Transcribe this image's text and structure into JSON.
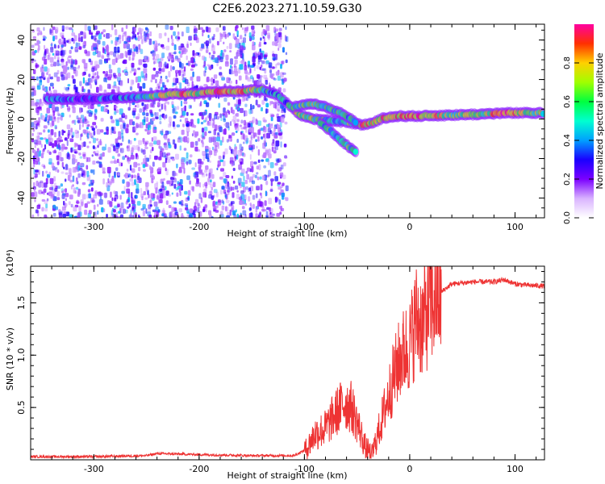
{
  "title": "C2E6.2023.271.10.59.G30",
  "chart_data": [
    {
      "type": "heatmap",
      "xlabel": "Height of straight line (km)",
      "ylabel": "Frequency (Hz)",
      "xlim": [
        -360,
        128
      ],
      "ylim": [
        -50,
        48
      ],
      "xticks": [
        -300,
        -200,
        -100,
        0,
        100
      ],
      "yticks": [
        -40,
        -20,
        0,
        20,
        40
      ],
      "colorbar": {
        "label": "Normalized spectral amplitude",
        "range": [
          0,
          1
        ],
        "ticks": [
          "0.0",
          "0.2",
          "0.4",
          "0.6",
          "0.8"
        ],
        "colors": [
          "#ffffff",
          "#d9b3ff",
          "#7b00ff",
          "#1a00ff",
          "#00a0ff",
          "#00ffd0",
          "#00ff40",
          "#a0ff00",
          "#ffd000",
          "#ff3000",
          "#ff00a0"
        ]
      },
      "noise_region_x": [
        -360,
        -118
      ],
      "ridge": [
        {
          "x": -345,
          "f": 10,
          "a": 0.35
        },
        {
          "x": -320,
          "f": 10,
          "a": 0.35
        },
        {
          "x": -290,
          "f": 10.5,
          "a": 0.35
        },
        {
          "x": -260,
          "f": 11,
          "a": 0.4
        },
        {
          "x": -245,
          "f": 11.5,
          "a": 0.6
        },
        {
          "x": -225,
          "f": 12.5,
          "a": 0.85
        },
        {
          "x": -200,
          "f": 13,
          "a": 0.7
        },
        {
          "x": -185,
          "f": 14,
          "a": 0.85
        },
        {
          "x": -160,
          "f": 14,
          "a": 0.8
        },
        {
          "x": -140,
          "f": 15,
          "a": 0.5
        },
        {
          "x": -125,
          "f": 12,
          "a": 0.4
        },
        {
          "x": -112,
          "f": 6,
          "a": 0.5
        },
        {
          "x": -105,
          "f": 2,
          "a": 0.75
        },
        {
          "x": -90,
          "f": 0,
          "a": 0.6
        },
        {
          "x": -75,
          "f": -1,
          "a": 0.5
        },
        {
          "x": -60,
          "f": -1.5,
          "a": 0.5
        },
        {
          "x": -45,
          "f": -3,
          "a": 0.85
        },
        {
          "x": -35,
          "f": -2,
          "a": 0.7
        },
        {
          "x": -25,
          "f": 0.5,
          "a": 0.85
        },
        {
          "x": -10,
          "f": 1.5,
          "a": 0.8
        },
        {
          "x": 10,
          "f": 1.5,
          "a": 0.85
        },
        {
          "x": 40,
          "f": 2,
          "a": 0.6
        },
        {
          "x": 70,
          "f": 2.5,
          "a": 0.65
        },
        {
          "x": 90,
          "f": 3,
          "a": 0.9
        },
        {
          "x": 110,
          "f": 3,
          "a": 0.7
        },
        {
          "x": 128,
          "f": 3,
          "a": 0.6
        }
      ],
      "upper_branch": [
        {
          "x": -110,
          "f": 6,
          "a": 0.5
        },
        {
          "x": -95,
          "f": 8,
          "a": 0.6
        },
        {
          "x": -80,
          "f": 6,
          "a": 0.55
        },
        {
          "x": -65,
          "f": 3,
          "a": 0.5
        },
        {
          "x": -50,
          "f": -2,
          "a": 0.45
        }
      ],
      "lower_branch": [
        {
          "x": -85,
          "f": -2,
          "a": 0.5
        },
        {
          "x": -75,
          "f": -6,
          "a": 0.5
        },
        {
          "x": -65,
          "f": -11,
          "a": 0.45
        },
        {
          "x": -58,
          "f": -14,
          "a": 0.55
        },
        {
          "x": -50,
          "f": -17,
          "a": 0.4
        }
      ]
    },
    {
      "type": "line",
      "xlabel": "Height of straight line (km)",
      "ylabel": "SNR (10 * v/v)",
      "y_multiplier_label": "(x10⁴)",
      "xlim": [
        -360,
        128
      ],
      "ylim": [
        0,
        1.85
      ],
      "xticks": [
        -300,
        -200,
        -100,
        0,
        100
      ],
      "yticks": [
        0.5,
        1.0,
        1.5
      ],
      "ytick_labels": [
        "0.5",
        "1.0",
        "1.5"
      ],
      "color": "#ee3333",
      "series": [
        {
          "x": [
            -360,
            -300,
            -250,
            -240,
            -200,
            -150,
            -110,
            -98,
            -90,
            -80,
            -70,
            -62,
            -55,
            -48,
            -42,
            -36,
            -30,
            -22,
            -15,
            -8,
            0,
            6,
            12,
            18,
            25,
            32,
            40,
            60,
            80,
            90,
            100,
            110,
            128
          ],
          "y": [
            0.03,
            0.03,
            0.04,
            0.06,
            0.05,
            0.04,
            0.04,
            0.1,
            0.25,
            0.3,
            0.45,
            0.55,
            0.5,
            0.3,
            0.12,
            0.05,
            0.25,
            0.55,
            0.8,
            1.0,
            1.1,
            1.35,
            1.3,
            1.45,
            1.55,
            1.62,
            1.68,
            1.7,
            1.7,
            1.72,
            1.68,
            1.67,
            1.66
          ]
        }
      ]
    }
  ]
}
